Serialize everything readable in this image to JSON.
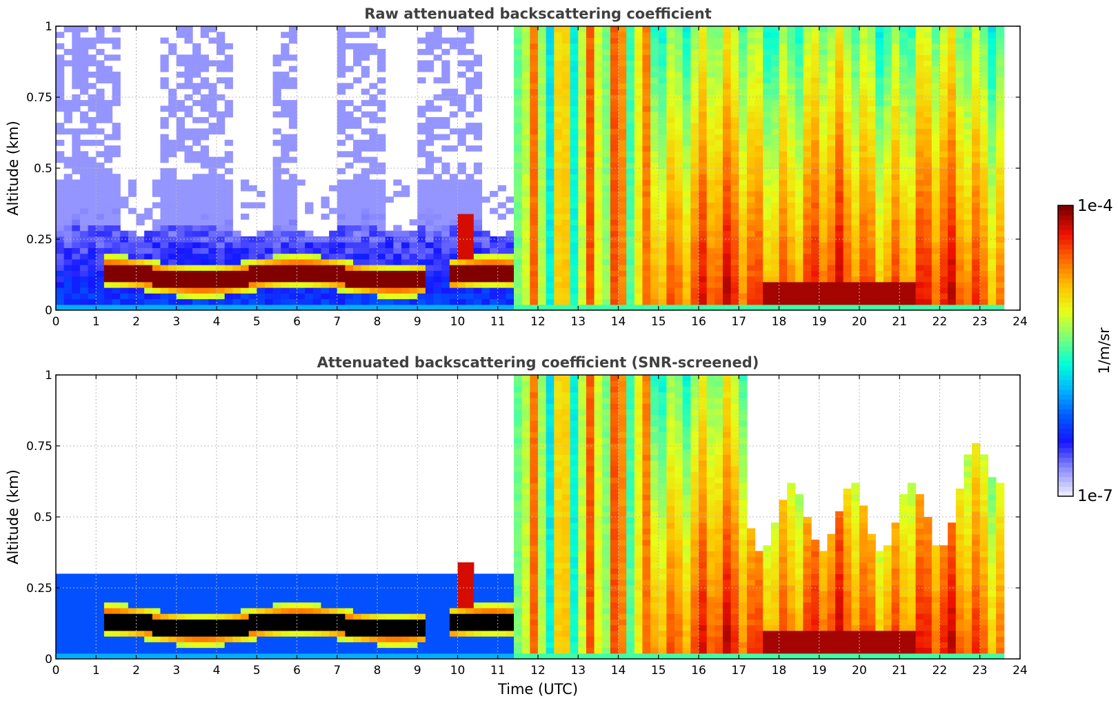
{
  "colors": {
    "colormap": [
      "#e8e8fb",
      "#8a8aff",
      "#1515ff",
      "#005aff",
      "#00b4ff",
      "#00ffd8",
      "#7aff7a",
      "#e6ff18",
      "#ffc000",
      "#ff6a00",
      "#ee1000",
      "#800000"
    ],
    "saturated_screened": "#000000",
    "title": "#404040"
  },
  "chart_data": [
    {
      "type": "heatmap",
      "panel": "raw",
      "title": "Raw attenuated backscattering coefficient",
      "xlabel": "",
      "ylabel": "Altitude (km)",
      "xlim": [
        0,
        24
      ],
      "ylim": [
        0,
        1
      ],
      "xticks": [
        0,
        1,
        2,
        3,
        4,
        5,
        6,
        7,
        8,
        9,
        10,
        11,
        12,
        13,
        14,
        15,
        16,
        17,
        18,
        19,
        20,
        21,
        22,
        23,
        24
      ],
      "xtick_labels": [
        "0",
        "1",
        "2",
        "3",
        "4",
        "5",
        "6",
        "7",
        "8",
        "9",
        "10",
        "11",
        "12",
        "13",
        "14",
        "15",
        "16",
        "17",
        "18",
        "19",
        "20",
        "21",
        "22",
        "23",
        "24"
      ],
      "yticks": [
        0,
        0.25,
        0.5,
        0.75,
        1
      ],
      "ytick_labels": [
        "0",
        "0.25",
        "0.5",
        "0.75",
        "1"
      ],
      "grid": true,
      "data_end_hour": 23.65,
      "data_gaps_hour": [
        7.15,
        7.22
      ],
      "fog_layer": {
        "start_hour": 1.15,
        "end_hour": 12.1,
        "base_km": 0.07,
        "top_km": 0.17
      },
      "cloud_onset_hour": 11.45
    },
    {
      "type": "heatmap",
      "panel": "screened",
      "title": "Attenuated backscattering coefficient (SNR-screened)",
      "xlabel": "Time (UTC)",
      "ylabel": "Altitude (km)",
      "xlim": [
        0,
        24
      ],
      "ylim": [
        0,
        1
      ],
      "xticks": [
        0,
        1,
        2,
        3,
        4,
        5,
        6,
        7,
        8,
        9,
        10,
        11,
        12,
        13,
        14,
        15,
        16,
        17,
        18,
        19,
        20,
        21,
        22,
        23,
        24
      ],
      "xtick_labels": [
        "0",
        "1",
        "2",
        "3",
        "4",
        "5",
        "6",
        "7",
        "8",
        "9",
        "10",
        "11",
        "12",
        "13",
        "14",
        "15",
        "16",
        "17",
        "18",
        "19",
        "20",
        "21",
        "22",
        "23",
        "24"
      ],
      "yticks": [
        0,
        0.25,
        0.5,
        0.75,
        1
      ],
      "ytick_labels": [
        "0",
        "0.25",
        "0.5",
        "0.75",
        "1"
      ],
      "grid": true,
      "data_end_hour": 23.65,
      "screen_top_km_night": 0.3
    }
  ],
  "colorbar": {
    "label": "1/m/sr",
    "max_label": "1e-4",
    "min_label": "1e-7",
    "vmin": 1e-07,
    "vmax": 0.0001,
    "scale": "log"
  }
}
